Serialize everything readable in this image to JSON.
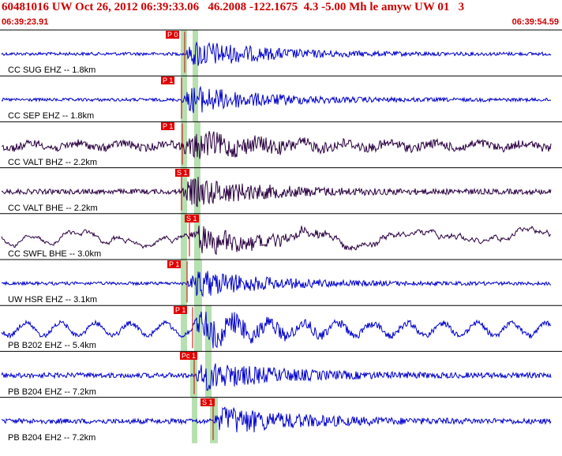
{
  "header": {
    "title": "60481016 UW Oct 26, 2012 06:39:33.06   46.2008 -122.1675  4.3 -5.00 Mh le amyw UW 01   3",
    "start_time": "06:39:23.91",
    "end_time": "06:39:54.59"
  },
  "colors": {
    "header_text": "#cc0000",
    "trace_blue": "#0000cc",
    "trace_dark": "#2a0040",
    "pick_tag": "#e00000",
    "pick_line": "#cc0000",
    "phase_band": "#b7e0b0",
    "separator": "#000000"
  },
  "channels": [
    {
      "label": "CC SUG EHZ -- 1.8km",
      "pick": "P 0",
      "trace_color": "blue",
      "noise": "low"
    },
    {
      "label": "CC SEP EHZ -- 1.8km",
      "pick": "P 1",
      "trace_color": "blue",
      "noise": "low"
    },
    {
      "label": "CC VALT BHZ -- 2.2km",
      "pick": "P 1",
      "trace_color": "dark",
      "noise": "high"
    },
    {
      "label": "CC VALT BHE -- 2.2km",
      "pick": "S 1",
      "trace_color": "dark",
      "noise": "medium"
    },
    {
      "label": "CC SWFL BHE -- 3.0km",
      "pick": "S 1",
      "trace_color": "dark",
      "noise": "wander"
    },
    {
      "label": "UW HSR EHZ -- 3.1km",
      "pick": "P 1",
      "trace_color": "blue",
      "noise": "low"
    },
    {
      "label": "PB B202 EHZ -- 5.4km",
      "pick": "P 1",
      "trace_color": "blue",
      "noise": "wave"
    },
    {
      "label": "PB B204 EHZ -- 7.2km",
      "pick": "Pc 1",
      "trace_color": "blue",
      "noise": "medium"
    },
    {
      "label": "PB B204 EH2 -- 7.2km",
      "pick": "S 1",
      "trace_color": "blue",
      "noise": "medium"
    }
  ]
}
